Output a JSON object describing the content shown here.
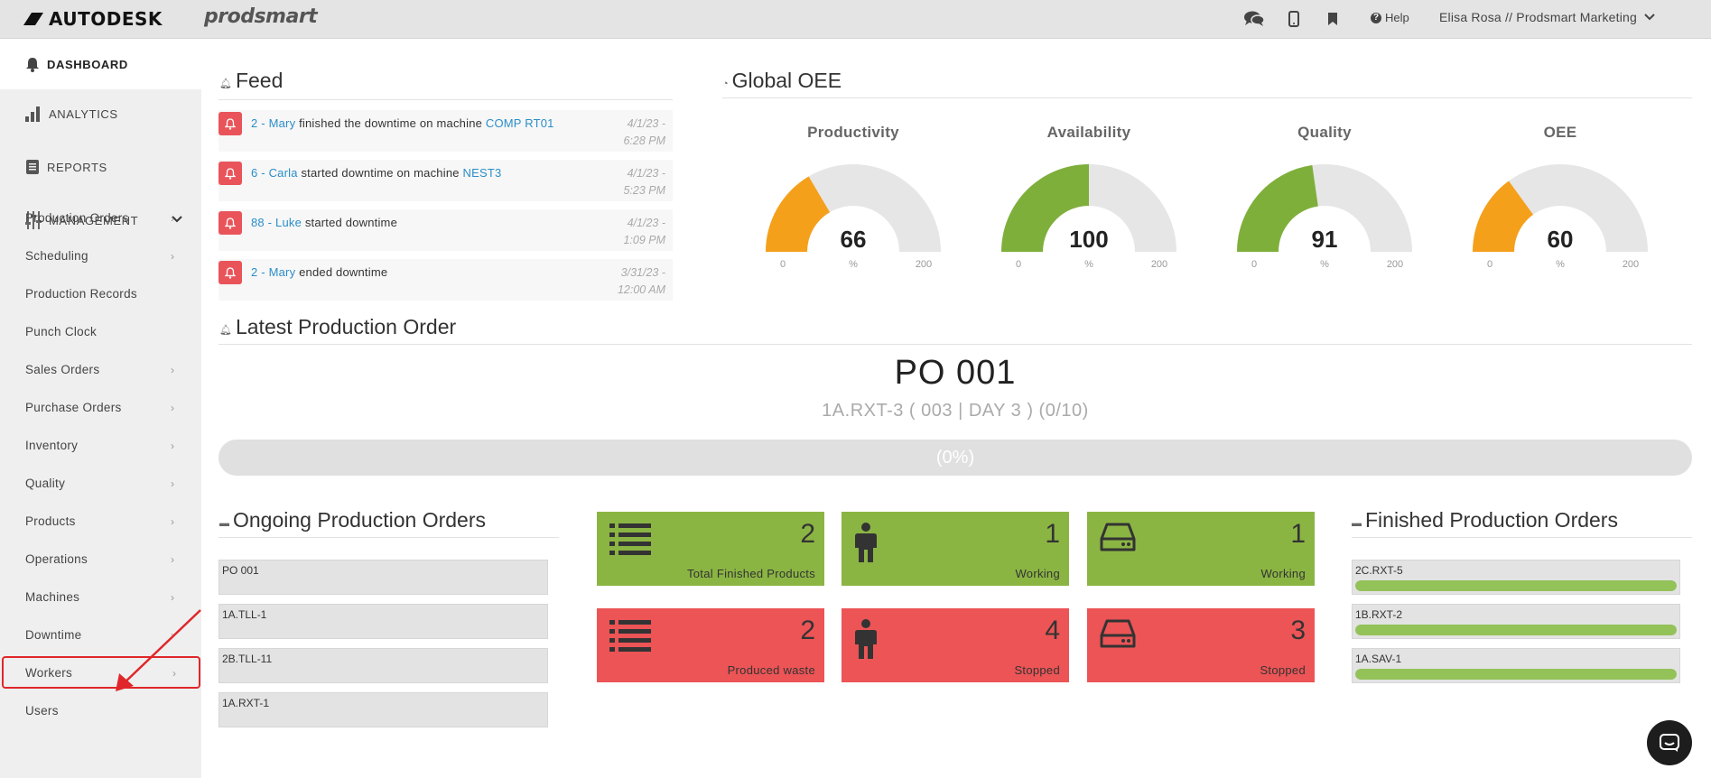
{
  "header": {
    "brand_autodesk": "AUTODESK",
    "brand_app": "prodsmart",
    "help_label": "Help",
    "user_label": "Elisa Rosa // Prodsmart Marketing"
  },
  "sidebar": {
    "main": [
      {
        "label": "DASHBOARD",
        "icon": "bell-icon"
      },
      {
        "label": "ANALYTICS",
        "icon": "bar-chart-icon"
      },
      {
        "label": "REPORTS",
        "icon": "document-icon"
      },
      {
        "label": "MANAGEMENT",
        "icon": "sliders-icon"
      }
    ],
    "items": [
      {
        "label": "Production Orders",
        "chevron": true
      },
      {
        "label": "Scheduling",
        "chevron": true
      },
      {
        "label": "Production Records",
        "chevron": false
      },
      {
        "label": "Punch Clock",
        "chevron": false
      },
      {
        "label": "Sales Orders",
        "chevron": true
      },
      {
        "label": "Purchase Orders",
        "chevron": true
      },
      {
        "label": "Inventory",
        "chevron": true
      },
      {
        "label": "Quality",
        "chevron": true
      },
      {
        "label": "Products",
        "chevron": true
      },
      {
        "label": "Operations",
        "chevron": true
      },
      {
        "label": "Machines",
        "chevron": true
      },
      {
        "label": "Downtime",
        "chevron": true
      },
      {
        "label": "Workers",
        "chevron": true
      },
      {
        "label": "Users",
        "chevron": false
      }
    ]
  },
  "feed": {
    "title": "Feed",
    "items": [
      {
        "actor": "2 - Mary",
        "text": " finished the downtime on machine ",
        "target": "COMP RT01",
        "date": "4/1/23 -",
        "time": "6:28 PM"
      },
      {
        "actor": "6 - Carla",
        "text": " started downtime on machine ",
        "target": "NEST3",
        "date": "4/1/23 -",
        "time": "5:23 PM"
      },
      {
        "actor": "88 - Luke",
        "text": " started downtime",
        "target": "",
        "date": "4/1/23 -",
        "time": "1:09 PM"
      },
      {
        "actor": "2 - Mary",
        "text": " ended downtime",
        "target": "",
        "date": "3/31/23 -",
        "time": "12:00 AM"
      }
    ]
  },
  "oee": {
    "title": "Global OEE",
    "gauges": [
      {
        "label": "Productivity",
        "value": 66,
        "min": "0",
        "max": "200",
        "unit": "%",
        "color": "#f5a01a"
      },
      {
        "label": "Availability",
        "value": 100,
        "min": "0",
        "max": "200",
        "unit": "%",
        "color": "#7faf3b"
      },
      {
        "label": "Quality",
        "value": 91,
        "min": "0",
        "max": "200",
        "unit": "%",
        "color": "#7faf3b"
      },
      {
        "label": "OEE",
        "value": 60,
        "min": "0",
        "max": "200",
        "unit": "%",
        "color": "#f5a01a"
      }
    ]
  },
  "latest": {
    "title": "Latest Production Order",
    "po": "PO 001",
    "subtitle": "1A.RXT-3 ( 003 | DAY 3 ) (0/10)",
    "progress_label": "(0%)",
    "progress": 0
  },
  "ongoing": {
    "title": "Ongoing Production Orders",
    "items": [
      "PO 001",
      "1A.TLL-1",
      "2B.TLL-11",
      "1A.RXT-1"
    ]
  },
  "tiles": [
    {
      "value": "2",
      "label": "Total Finished Products",
      "icon": "list-icon",
      "status": "green"
    },
    {
      "value": "1",
      "label": "Working",
      "icon": "person-icon",
      "status": "green"
    },
    {
      "value": "1",
      "label": "Working",
      "icon": "machine-icon",
      "status": "green"
    },
    {
      "value": "2",
      "label": "Produced waste",
      "icon": "list-icon",
      "status": "red"
    },
    {
      "value": "4",
      "label": "Stopped",
      "icon": "person-icon",
      "status": "red"
    },
    {
      "value": "3",
      "label": "Stopped",
      "icon": "machine-icon",
      "status": "red"
    }
  ],
  "finished": {
    "title": "Finished Production Orders",
    "items": [
      {
        "label": "2C.RXT-5",
        "progress": 1
      },
      {
        "label": "1B.RXT-2",
        "progress": 1
      },
      {
        "label": "1A.SAV-1",
        "progress": 1
      }
    ]
  }
}
